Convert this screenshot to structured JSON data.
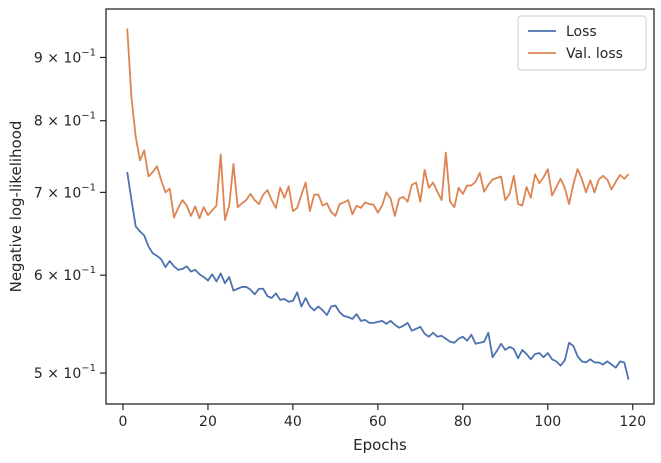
{
  "chart_data": {
    "type": "line",
    "xlabel": "Epochs",
    "ylabel": "Negative log-likelihood",
    "xlim": [
      -4,
      125
    ],
    "ylim": [
      0.472,
      0.985
    ],
    "yscale": "log",
    "grid": false,
    "legend": "top-right",
    "x_ticks": [
      {
        "value": 0,
        "label": "0"
      },
      {
        "value": 20,
        "label": "20"
      },
      {
        "value": 40,
        "label": "40"
      },
      {
        "value": 60,
        "label": "60"
      },
      {
        "value": 80,
        "label": "80"
      },
      {
        "value": 100,
        "label": "100"
      },
      {
        "value": 120,
        "label": "120"
      }
    ],
    "y_ticks": [
      {
        "value": 0.5,
        "base": "5",
        "mid": " × 10",
        "exp": "−1"
      },
      {
        "value": 0.6,
        "base": "6",
        "mid": " × 10",
        "exp": "−1"
      },
      {
        "value": 0.7,
        "base": "7",
        "mid": " × 10",
        "exp": "−1"
      },
      {
        "value": 0.8,
        "base": "8",
        "mid": " × 10",
        "exp": "−1"
      },
      {
        "value": 0.9,
        "base": "9",
        "mid": " × 10",
        "exp": "−1"
      }
    ],
    "series": [
      {
        "name": "Loss",
        "color": "#4c72b0",
        "x": [
          1,
          2,
          3,
          4,
          5,
          6,
          7,
          8,
          9,
          10,
          11,
          12,
          13,
          14,
          15,
          16,
          17,
          18,
          19,
          20,
          21,
          22,
          23,
          24,
          25,
          26,
          27,
          28,
          29,
          30,
          31,
          32,
          33,
          34,
          35,
          36,
          37,
          38,
          39,
          40,
          41,
          42,
          43,
          44,
          45,
          46,
          47,
          48,
          49,
          50,
          51,
          52,
          53,
          54,
          55,
          56,
          57,
          58,
          59,
          60,
          61,
          62,
          63,
          64,
          65,
          66,
          67,
          68,
          69,
          70,
          71,
          72,
          73,
          74,
          75,
          76,
          77,
          78,
          79,
          80,
          81,
          82,
          83,
          84,
          85,
          86,
          87,
          88,
          89,
          90,
          91,
          92,
          93,
          94,
          95,
          96,
          97,
          98,
          99,
          100,
          101,
          102,
          103,
          104,
          105,
          106,
          107,
          108,
          109,
          110,
          111,
          112,
          113,
          114,
          115,
          116,
          117,
          118,
          119
        ],
        "y": [
          0.727,
          0.69,
          0.657,
          0.651,
          0.646,
          0.633,
          0.625,
          0.622,
          0.618,
          0.609,
          0.616,
          0.61,
          0.606,
          0.607,
          0.61,
          0.604,
          0.606,
          0.601,
          0.598,
          0.594,
          0.601,
          0.593,
          0.602,
          0.591,
          0.598,
          0.583,
          0.585,
          0.587,
          0.587,
          0.584,
          0.579,
          0.585,
          0.585,
          0.577,
          0.575,
          0.58,
          0.573,
          0.574,
          0.571,
          0.572,
          0.581,
          0.566,
          0.575,
          0.566,
          0.562,
          0.566,
          0.562,
          0.557,
          0.566,
          0.567,
          0.56,
          0.556,
          0.555,
          0.553,
          0.558,
          0.551,
          0.552,
          0.549,
          0.549,
          0.55,
          0.551,
          0.548,
          0.551,
          0.547,
          0.544,
          0.546,
          0.549,
          0.541,
          0.543,
          0.545,
          0.538,
          0.535,
          0.539,
          0.535,
          0.536,
          0.533,
          0.53,
          0.529,
          0.533,
          0.535,
          0.531,
          0.537,
          0.528,
          0.529,
          0.53,
          0.539,
          0.515,
          0.521,
          0.528,
          0.522,
          0.525,
          0.523,
          0.514,
          0.522,
          0.518,
          0.513,
          0.518,
          0.519,
          0.515,
          0.519,
          0.513,
          0.511,
          0.507,
          0.512,
          0.529,
          0.526,
          0.516,
          0.511,
          0.51,
          0.513,
          0.51,
          0.51,
          0.508,
          0.511,
          0.508,
          0.505,
          0.511,
          0.51,
          0.494
        ]
      },
      {
        "name": "Val. loss",
        "color": "#dd8452",
        "x": [
          1,
          2,
          3,
          4,
          5,
          6,
          7,
          8,
          9,
          10,
          11,
          12,
          13,
          14,
          15,
          16,
          17,
          18,
          19,
          20,
          21,
          22,
          23,
          24,
          25,
          26,
          27,
          28,
          29,
          30,
          31,
          32,
          33,
          34,
          35,
          36,
          37,
          38,
          39,
          40,
          41,
          42,
          43,
          44,
          45,
          46,
          47,
          48,
          49,
          50,
          51,
          52,
          53,
          54,
          55,
          56,
          57,
          58,
          59,
          60,
          61,
          62,
          63,
          64,
          65,
          66,
          67,
          68,
          69,
          70,
          71,
          72,
          73,
          74,
          75,
          76,
          77,
          78,
          79,
          80,
          81,
          82,
          83,
          84,
          85,
          86,
          87,
          88,
          89,
          90,
          91,
          92,
          93,
          94,
          95,
          96,
          97,
          98,
          99,
          100,
          101,
          102,
          103,
          104,
          105,
          106,
          107,
          108,
          109,
          110,
          111,
          112,
          113,
          114,
          115,
          116,
          117,
          118,
          119
        ],
        "y": [
          0.95,
          0.835,
          0.776,
          0.743,
          0.757,
          0.721,
          0.727,
          0.735,
          0.716,
          0.7,
          0.705,
          0.668,
          0.68,
          0.69,
          0.683,
          0.67,
          0.682,
          0.667,
          0.681,
          0.671,
          0.677,
          0.683,
          0.751,
          0.665,
          0.683,
          0.738,
          0.681,
          0.686,
          0.69,
          0.698,
          0.69,
          0.685,
          0.697,
          0.703,
          0.69,
          0.68,
          0.706,
          0.693,
          0.708,
          0.676,
          0.68,
          0.697,
          0.713,
          0.676,
          0.697,
          0.697,
          0.683,
          0.686,
          0.675,
          0.67,
          0.685,
          0.687,
          0.69,
          0.672,
          0.683,
          0.68,
          0.687,
          0.685,
          0.684,
          0.674,
          0.683,
          0.7,
          0.692,
          0.67,
          0.692,
          0.694,
          0.688,
          0.71,
          0.713,
          0.688,
          0.73,
          0.706,
          0.713,
          0.701,
          0.69,
          0.754,
          0.688,
          0.681,
          0.706,
          0.698,
          0.709,
          0.709,
          0.714,
          0.726,
          0.701,
          0.71,
          0.717,
          0.719,
          0.721,
          0.69,
          0.698,
          0.722,
          0.685,
          0.683,
          0.707,
          0.693,
          0.724,
          0.712,
          0.72,
          0.731,
          0.696,
          0.707,
          0.718,
          0.706,
          0.685,
          0.71,
          0.731,
          0.718,
          0.7,
          0.716,
          0.7,
          0.717,
          0.722,
          0.717,
          0.704,
          0.714,
          0.723,
          0.718,
          0.724
        ]
      }
    ]
  }
}
